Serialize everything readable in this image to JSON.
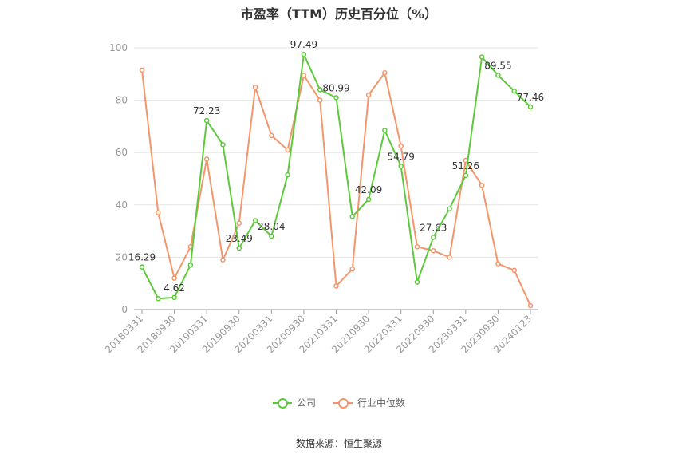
{
  "source_text": "数据来源：恒生聚源",
  "chart_data": {
    "type": "line",
    "title": "市盈率（TTM）历史百分位（%）",
    "ylim": [
      0,
      100
    ],
    "yticks": [
      0,
      20,
      40,
      60,
      80,
      100
    ],
    "grid": true,
    "legend_position": "bottom",
    "x": [
      "20180331",
      "20180630",
      "20180930",
      "20181231",
      "20190331",
      "20190630",
      "20190930",
      "20191231",
      "20200331",
      "20200630",
      "20200930",
      "20201231",
      "20210331",
      "20210630",
      "20210930",
      "20211231",
      "20220331",
      "20220630",
      "20220930",
      "20221231",
      "20230331",
      "20230630",
      "20230930",
      "20231231",
      "20240123"
    ],
    "xtick_labels": [
      "20180331",
      "20180930",
      "20190331",
      "20190930",
      "20200331",
      "20200930",
      "20210331",
      "20210930",
      "20220331",
      "20220930",
      "20230331",
      "20230930",
      "20240123"
    ],
    "series": [
      {
        "name": "公司",
        "color": "#5cc93a",
        "values": [
          16.29,
          4.2,
          4.62,
          17,
          72.23,
          63,
          23.49,
          34,
          28.04,
          51.5,
          97.49,
          84,
          80.99,
          35.5,
          42.09,
          68.5,
          54.79,
          10.5,
          27.63,
          38.5,
          51.26,
          96.5,
          89.55,
          83.5,
          77.46
        ],
        "labels": {
          "0": "16.29",
          "2": "4.62",
          "4": "72.23",
          "6": "23.49",
          "8": "28.04",
          "10": "97.49",
          "12": "80.99",
          "14": "42.09",
          "16": "54.79",
          "18": "27.63",
          "20": "51.26",
          "22": "89.55",
          "24": "77.46"
        }
      },
      {
        "name": "行业中位数",
        "color": "#f4956a",
        "values": [
          91.5,
          37,
          12,
          24,
          57.5,
          19,
          33,
          85,
          66.5,
          61,
          89.5,
          80,
          9,
          15.5,
          82,
          90.5,
          62.5,
          24,
          22.5,
          20,
          57,
          47.5,
          17.5,
          15,
          1.5
        ]
      }
    ]
  }
}
